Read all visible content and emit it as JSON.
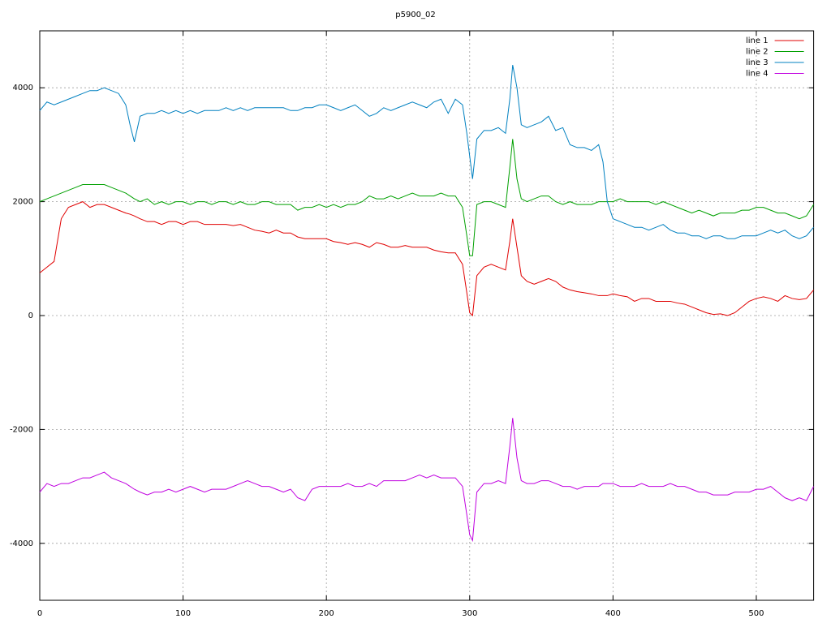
{
  "chart_data": {
    "type": "line",
    "title": "p5900_02",
    "x": [
      0,
      5,
      10,
      15,
      20,
      25,
      30,
      35,
      40,
      45,
      50,
      55,
      60,
      63,
      66,
      70,
      75,
      80,
      85,
      90,
      95,
      100,
      105,
      110,
      115,
      120,
      125,
      130,
      135,
      140,
      145,
      150,
      155,
      160,
      165,
      170,
      175,
      180,
      185,
      190,
      195,
      200,
      205,
      210,
      215,
      220,
      225,
      230,
      235,
      240,
      245,
      250,
      255,
      260,
      265,
      270,
      275,
      280,
      285,
      290,
      295,
      298,
      300,
      302,
      305,
      310,
      315,
      320,
      325,
      328,
      330,
      333,
      336,
      340,
      345,
      350,
      355,
      360,
      365,
      370,
      375,
      380,
      385,
      390,
      393,
      396,
      400,
      405,
      410,
      415,
      420,
      425,
      430,
      435,
      440,
      445,
      450,
      455,
      460,
      465,
      470,
      475,
      480,
      485,
      490,
      495,
      500,
      505,
      510,
      515,
      520,
      525,
      530,
      535,
      540
    ],
    "series": [
      {
        "name": "line 1",
        "color": "#e00000",
        "values": [
          750,
          850,
          950,
          1700,
          1900,
          1950,
          2000,
          1900,
          1950,
          1950,
          1900,
          1850,
          1800,
          1780,
          1750,
          1700,
          1650,
          1650,
          1600,
          1650,
          1650,
          1600,
          1650,
          1650,
          1600,
          1600,
          1600,
          1600,
          1580,
          1600,
          1550,
          1500,
          1480,
          1450,
          1500,
          1450,
          1450,
          1380,
          1350,
          1350,
          1350,
          1350,
          1300,
          1280,
          1250,
          1280,
          1250,
          1200,
          1280,
          1250,
          1200,
          1200,
          1230,
          1200,
          1200,
          1200,
          1150,
          1120,
          1100,
          1100,
          900,
          400,
          50,
          0,
          700,
          850,
          900,
          850,
          800,
          1300,
          1700,
          1200,
          700,
          600,
          550,
          600,
          650,
          600,
          500,
          450,
          420,
          400,
          380,
          350,
          350,
          350,
          380,
          350,
          330,
          250,
          300,
          300,
          250,
          250,
          250,
          220,
          200,
          150,
          100,
          50,
          20,
          30,
          0,
          50,
          150,
          250,
          300,
          330,
          300,
          250,
          350,
          300,
          280,
          300,
          450
        ]
      },
      {
        "name": "line 2",
        "color": "#00a000",
        "values": [
          2000,
          2050,
          2100,
          2150,
          2200,
          2250,
          2300,
          2300,
          2300,
          2300,
          2250,
          2200,
          2150,
          2100,
          2050,
          2000,
          2050,
          1950,
          2000,
          1950,
          2000,
          2000,
          1950,
          2000,
          2000,
          1950,
          2000,
          2000,
          1950,
          2000,
          1950,
          1950,
          2000,
          2000,
          1950,
          1950,
          1950,
          1850,
          1900,
          1900,
          1950,
          1900,
          1950,
          1900,
          1950,
          1950,
          2000,
          2100,
          2050,
          2050,
          2100,
          2050,
          2100,
          2150,
          2100,
          2100,
          2100,
          2150,
          2100,
          2100,
          1900,
          1400,
          1050,
          1050,
          1950,
          2000,
          2000,
          1950,
          1900,
          2600,
          3100,
          2400,
          2050,
          2000,
          2050,
          2100,
          2100,
          2000,
          1950,
          2000,
          1950,
          1950,
          1950,
          2000,
          2000,
          2000,
          2000,
          2050,
          2000,
          2000,
          2000,
          2000,
          1950,
          2000,
          1950,
          1900,
          1850,
          1800,
          1850,
          1800,
          1750,
          1800,
          1800,
          1800,
          1850,
          1850,
          1900,
          1900,
          1850,
          1800,
          1800,
          1750,
          1700,
          1750,
          1950
        ]
      },
      {
        "name": "line 3",
        "color": "#0080c0",
        "values": [
          3600,
          3750,
          3700,
          3750,
          3800,
          3850,
          3900,
          3950,
          3950,
          4000,
          3950,
          3900,
          3700,
          3350,
          3050,
          3500,
          3550,
          3550,
          3600,
          3550,
          3600,
          3550,
          3600,
          3550,
          3600,
          3600,
          3600,
          3650,
          3600,
          3650,
          3600,
          3650,
          3650,
          3650,
          3650,
          3650,
          3600,
          3600,
          3650,
          3650,
          3700,
          3700,
          3650,
          3600,
          3650,
          3700,
          3600,
          3500,
          3550,
          3650,
          3600,
          3650,
          3700,
          3750,
          3700,
          3650,
          3750,
          3800,
          3550,
          3800,
          3700,
          3200,
          2800,
          2400,
          3100,
          3250,
          3250,
          3300,
          3200,
          3800,
          4400,
          4000,
          3350,
          3300,
          3350,
          3400,
          3500,
          3250,
          3300,
          3000,
          2950,
          2950,
          2900,
          3000,
          2700,
          2000,
          1700,
          1650,
          1600,
          1550,
          1550,
          1500,
          1550,
          1600,
          1500,
          1450,
          1450,
          1400,
          1400,
          1350,
          1400,
          1400,
          1350,
          1350,
          1400,
          1400,
          1400,
          1450,
          1500,
          1450,
          1500,
          1400,
          1350,
          1400,
          1550
        ]
      },
      {
        "name": "line 4",
        "color": "#c000e0",
        "values": [
          -3100,
          -2950,
          -3000,
          -2950,
          -2950,
          -2900,
          -2850,
          -2850,
          -2800,
          -2750,
          -2850,
          -2900,
          -2950,
          -3000,
          -3050,
          -3100,
          -3150,
          -3100,
          -3100,
          -3050,
          -3100,
          -3050,
          -3000,
          -3050,
          -3100,
          -3050,
          -3050,
          -3050,
          -3000,
          -2950,
          -2900,
          -2950,
          -3000,
          -3000,
          -3050,
          -3100,
          -3050,
          -3200,
          -3250,
          -3050,
          -3000,
          -3000,
          -3000,
          -3000,
          -2950,
          -3000,
          -3000,
          -2950,
          -3000,
          -2900,
          -2900,
          -2900,
          -2900,
          -2850,
          -2800,
          -2850,
          -2800,
          -2850,
          -2850,
          -2850,
          -3000,
          -3500,
          -3850,
          -3950,
          -3100,
          -2950,
          -2950,
          -2900,
          -2950,
          -2300,
          -1800,
          -2500,
          -2900,
          -2950,
          -2950,
          -2900,
          -2900,
          -2950,
          -3000,
          -3000,
          -3050,
          -3000,
          -3000,
          -3000,
          -2950,
          -2950,
          -2950,
          -3000,
          -3000,
          -3000,
          -2950,
          -3000,
          -3000,
          -3000,
          -2950,
          -3000,
          -3000,
          -3050,
          -3100,
          -3100,
          -3150,
          -3150,
          -3150,
          -3100,
          -3100,
          -3100,
          -3050,
          -3050,
          -3000,
          -3100,
          -3200,
          -3250,
          -3200,
          -3250,
          -3000
        ]
      }
    ],
    "xlim": [
      0,
      540
    ],
    "xticks": [
      0,
      100,
      200,
      300,
      400,
      500
    ],
    "ylim": [
      -5000,
      5000
    ],
    "yticks": [
      -4000,
      -2000,
      0,
      2000,
      4000
    ],
    "grid": true,
    "legend": "upper right"
  }
}
